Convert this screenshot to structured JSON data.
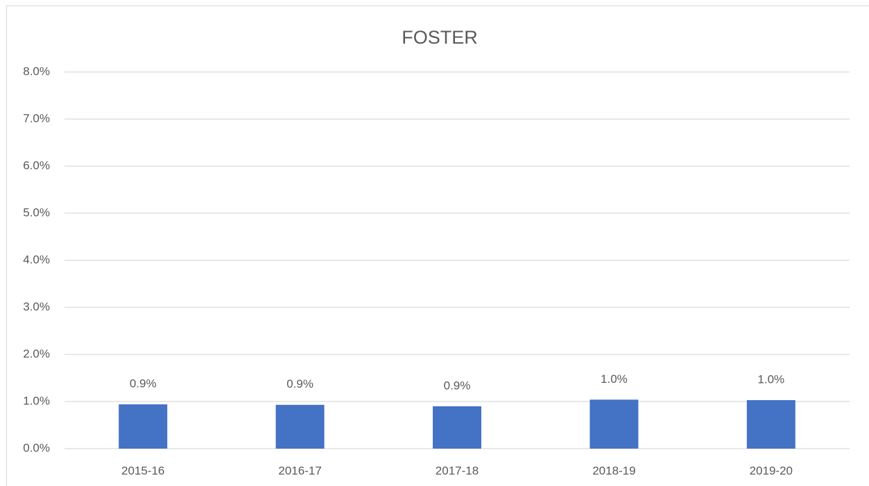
{
  "chart_data": {
    "type": "bar",
    "title": "FOSTER",
    "categories": [
      "2015-16",
      "2016-17",
      "2017-18",
      "2018-19",
      "2019-20"
    ],
    "values": [
      0.94,
      0.93,
      0.9,
      1.04,
      1.03
    ],
    "value_labels": [
      "0.9%",
      "0.9%",
      "0.9%",
      "1.0%",
      "1.0%"
    ],
    "color": "#4472c4",
    "ylim": [
      0,
      8
    ],
    "yticks": [
      {
        "value": 0,
        "label": "0.0%"
      },
      {
        "value": 1,
        "label": "1.0%"
      },
      {
        "value": 2,
        "label": "2.0%"
      },
      {
        "value": 3,
        "label": "3.0%"
      },
      {
        "value": 4,
        "label": "4.0%"
      },
      {
        "value": 5,
        "label": "5.0%"
      },
      {
        "value": 6,
        "label": "6.0%"
      },
      {
        "value": 7,
        "label": "7.0%"
      },
      {
        "value": 8,
        "label": "8.0%"
      }
    ],
    "grid": true
  }
}
